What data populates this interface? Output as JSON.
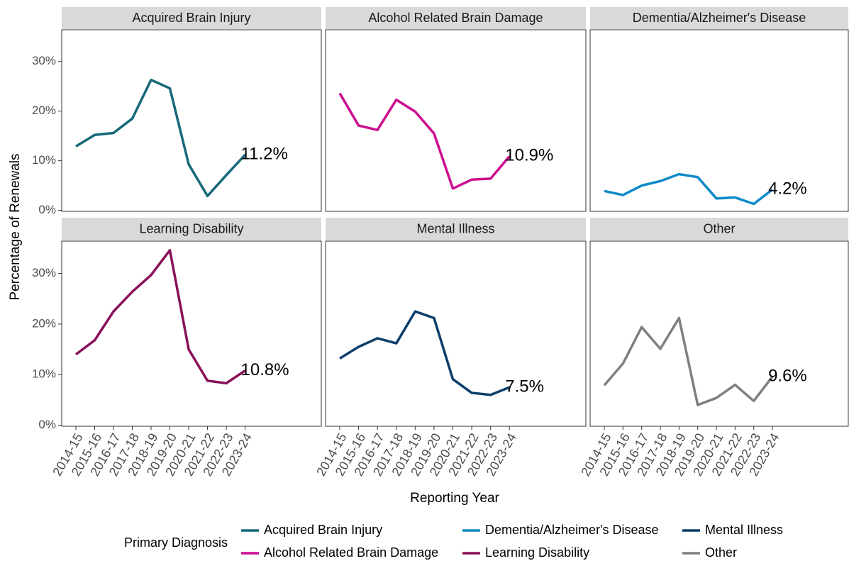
{
  "y_label": "Percentage of Renewals",
  "x_label": "Reporting Year",
  "legend_title": "Primary Diagnosis",
  "chart_data": [
    {
      "type": "line",
      "title": "Acquired Brain Injury",
      "ylim": [
        -0.2,
        36.4
      ],
      "yticks": [
        {
          "value": 0,
          "label": "0%"
        },
        {
          "value": 10,
          "label": "10%"
        },
        {
          "value": 20,
          "label": "20%"
        },
        {
          "value": 30,
          "label": "30%"
        }
      ],
      "series": [
        {
          "name": "Acquired Brain Injury",
          "color": "#16697a",
          "values": [
            12.9,
            15.2,
            15.6,
            18.5,
            26.3,
            24.6,
            9.3,
            2.9,
            7.1,
            11.2
          ],
          "value_labels": [
            null,
            null,
            null,
            null,
            null,
            null,
            null,
            null,
            null,
            "11.2%"
          ]
        }
      ]
    },
    {
      "type": "line",
      "title": "Alcohol Related Brain Damage",
      "ylim": [
        -0.2,
        36.4
      ],
      "series": [
        {
          "name": "Alcohol Related Brain Damage",
          "color": "#cc0e8f",
          "values": [
            23.6,
            17.1,
            16.2,
            22.3,
            19.9,
            15.5,
            4.4,
            6.2,
            6.4,
            10.9
          ],
          "value_labels": [
            null,
            null,
            null,
            null,
            null,
            null,
            null,
            null,
            null,
            "10.9%"
          ]
        }
      ]
    },
    {
      "type": "line",
      "title": "Dementia/Alzheimer's Disease",
      "ylim": [
        -0.2,
        36.4
      ],
      "series": [
        {
          "name": "Dementia/Alzheimer's Disease",
          "color": "#0e8ac9",
          "values": [
            3.9,
            3.1,
            5.0,
            5.9,
            7.3,
            6.7,
            2.4,
            2.6,
            1.3,
            4.2
          ],
          "value_labels": [
            null,
            null,
            null,
            null,
            null,
            null,
            null,
            null,
            null,
            "4.2%"
          ]
        }
      ]
    },
    {
      "type": "line",
      "title": "Learning Disability",
      "ylim": [
        -0.2,
        36.4
      ],
      "yticks": [
        {
          "value": 0,
          "label": "0%"
        },
        {
          "value": 10,
          "label": "10%"
        },
        {
          "value": 20,
          "label": "20%"
        },
        {
          "value": 30,
          "label": "30%"
        }
      ],
      "categories": [
        "2014-15",
        "2015-16",
        "2016-17",
        "2017-18",
        "2018-19",
        "2019-20",
        "2020-21",
        "2021-22",
        "2022-23",
        "2023-24"
      ],
      "series": [
        {
          "name": "Learning Disability",
          "color": "#8a1059",
          "values": [
            14.0,
            16.8,
            22.5,
            26.4,
            29.7,
            34.6,
            15.0,
            8.8,
            8.3,
            10.8
          ],
          "value_labels": [
            null,
            null,
            null,
            null,
            null,
            null,
            null,
            null,
            null,
            "10.8%"
          ]
        }
      ]
    },
    {
      "type": "line",
      "title": "Mental Illness",
      "ylim": [
        -0.2,
        36.4
      ],
      "categories": [
        "2014-15",
        "2015-16",
        "2016-17",
        "2017-18",
        "2018-19",
        "2019-20",
        "2020-21",
        "2021-22",
        "2022-23",
        "2023-24"
      ],
      "series": [
        {
          "name": "Mental Illness",
          "color": "#0b3e6b",
          "values": [
            13.2,
            15.5,
            17.2,
            16.2,
            22.5,
            21.2,
            9.1,
            6.4,
            6.0,
            7.5
          ],
          "value_labels": [
            null,
            null,
            null,
            null,
            null,
            null,
            null,
            null,
            null,
            "7.5%"
          ]
        }
      ]
    },
    {
      "type": "line",
      "title": "Other",
      "ylim": [
        -0.2,
        36.4
      ],
      "categories": [
        "2014-15",
        "2015-16",
        "2016-17",
        "2017-18",
        "2018-19",
        "2019-20",
        "2020-21",
        "2021-22",
        "2022-23",
        "2023-24"
      ],
      "series": [
        {
          "name": "Other",
          "color": "#808080",
          "values": [
            7.9,
            12.2,
            19.4,
            15.1,
            21.2,
            4.0,
            5.4,
            8.0,
            4.8,
            9.6
          ],
          "value_labels": [
            null,
            null,
            null,
            null,
            null,
            null,
            null,
            null,
            null,
            "9.6%"
          ]
        }
      ]
    }
  ]
}
